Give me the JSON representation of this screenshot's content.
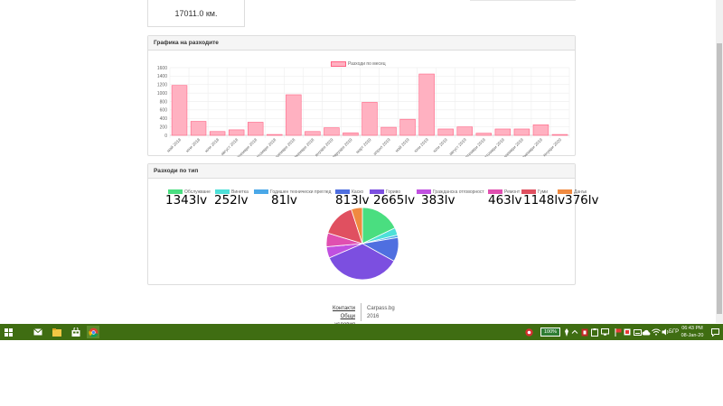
{
  "odometer": {
    "value": "17011.0 км."
  },
  "expenses_panel": {
    "heading": "Графика на разходите"
  },
  "types_panel": {
    "heading": "Разходи по тип"
  },
  "chart_data": [
    {
      "type": "bar",
      "legend": [
        "Разходи по месец"
      ],
      "categories": [
        "май 2018",
        "юни 2018",
        "юли 2018",
        "август 2018",
        "септември 2018",
        "октомври 2018",
        "ноември 2018",
        "декември 2018",
        "януари 2019",
        "февруари 2019",
        "март 2019",
        "април 2019",
        "май 2019",
        "юни 2019",
        "юли 2019",
        "август 2019",
        "септември 2019",
        "октомври 2019",
        "ноември 2019",
        "декември 2019",
        "януари 2020"
      ],
      "series": [
        {
          "name": "Разходи по месец",
          "values": [
            1180,
            330,
            90,
            130,
            310,
            20,
            960,
            90,
            180,
            60,
            780,
            190,
            380,
            1450,
            150,
            200,
            50,
            150,
            150,
            250,
            20
          ]
        }
      ],
      "ylim": [
        0,
        1600
      ],
      "yticks": [
        "1600",
        "1400",
        "1200",
        "1000",
        "800",
        "600",
        "400",
        "200",
        "0"
      ],
      "color": "#ffb1c1",
      "border_color": "#ff6384",
      "grid": true
    },
    {
      "type": "pie",
      "labels": [
        "Обслужване",
        "Винетка",
        "Годишен технически преглед",
        "Каско",
        "Гориво",
        "Гражданска отговорност",
        "Ремонт",
        "Гуми",
        "Данък"
      ],
      "values": [
        1343,
        252,
        81,
        813,
        2665,
        383,
        463,
        1148,
        376
      ],
      "value_labels": [
        "1343lv",
        "252lv",
        "81lv",
        "813lv",
        "2665lv",
        "383lv",
        "463lv",
        "1148lv",
        "376lv"
      ],
      "colors": [
        "#4ade80",
        "#4ee0d8",
        "#4aa8e8",
        "#4f6fe0",
        "#7c4fe0",
        "#c050e0",
        "#e04fb0",
        "#e05060",
        "#f08a40"
      ]
    }
  ],
  "footer": {
    "links": [
      "Контакти",
      "Общи условия"
    ],
    "brand": "Carpass.bg",
    "year": "2016"
  },
  "taskbar": {
    "battery": "100%",
    "language": "БГР",
    "time": "06:43 PM",
    "date": "08-Jan-20",
    "pinned_icons": [
      "mail-icon",
      "file-explorer-icon",
      "store-icon",
      "chrome-icon"
    ]
  }
}
